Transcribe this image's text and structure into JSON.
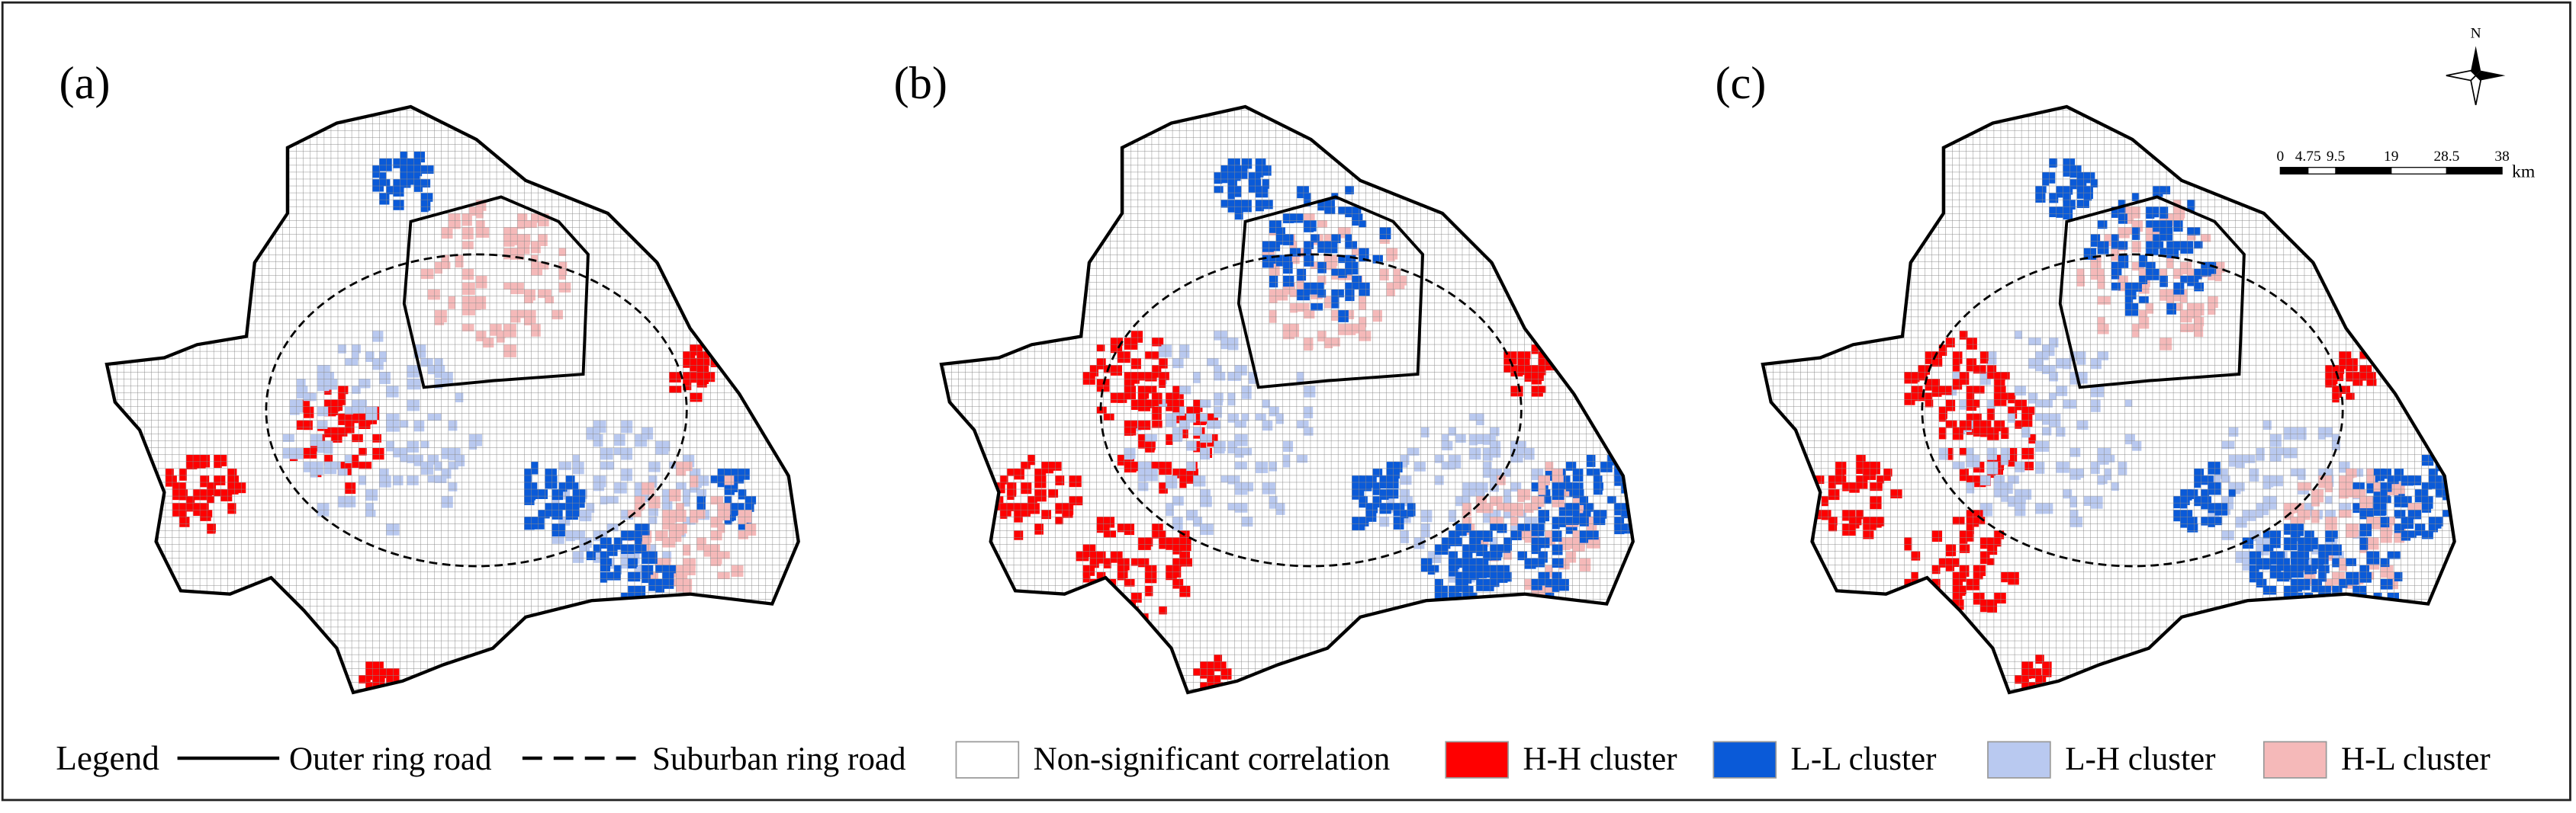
{
  "panels": [
    "(a)",
    "(b)",
    "(c)"
  ],
  "north_arrow": "N",
  "scale_bar": {
    "labels": [
      "0",
      "4.75",
      "9.5",
      "19",
      "28.5",
      "38"
    ],
    "unit": "km"
  },
  "legend": {
    "title": "Legend",
    "lines": [
      "Outer ring road",
      "Suburban ring road"
    ],
    "items": [
      {
        "label": "Non-significant correlation",
        "color": "#ffffff"
      },
      {
        "label": "H-H cluster",
        "color": "#ff0000"
      },
      {
        "label": "L-L cluster",
        "color": "#0a5ad8"
      },
      {
        "label": "L-H cluster",
        "color": "#b9c9f0"
      },
      {
        "label": "H-L cluster",
        "color": "#f5b9b9"
      }
    ]
  }
}
